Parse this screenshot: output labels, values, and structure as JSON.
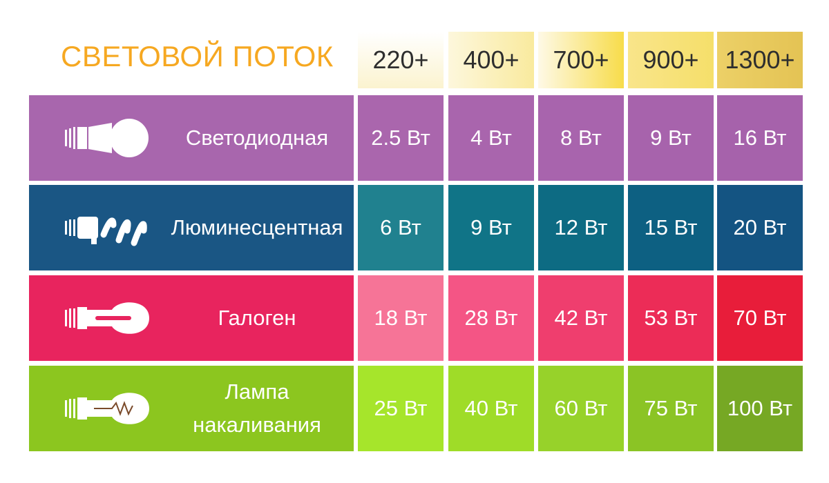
{
  "header": {
    "title": "СВЕТОВОЙ ПОТОК",
    "columns": [
      "220+",
      "400+",
      "700+",
      "900+",
      "1300+"
    ]
  },
  "rows": [
    {
      "name": "Светодиодная",
      "cells": [
        "2.5 Вт",
        "4 Вт",
        "8 Вт",
        "9 Вт",
        "16 Вт"
      ]
    },
    {
      "name": "Люминесцентная",
      "cells": [
        "6 Вт",
        "9 Вт",
        "12 Вт",
        "15 Вт",
        "20 Вт"
      ]
    },
    {
      "name": "Галоген",
      "cells": [
        "18 Вт",
        "28 Вт",
        "42 Вт",
        "53 Вт",
        "70 Вт"
      ]
    },
    {
      "name": "Лампа накаливания",
      "cells": [
        "25 Вт",
        "40 Вт",
        "60 Вт",
        "75 Вт",
        "100 Вт"
      ]
    }
  ]
}
